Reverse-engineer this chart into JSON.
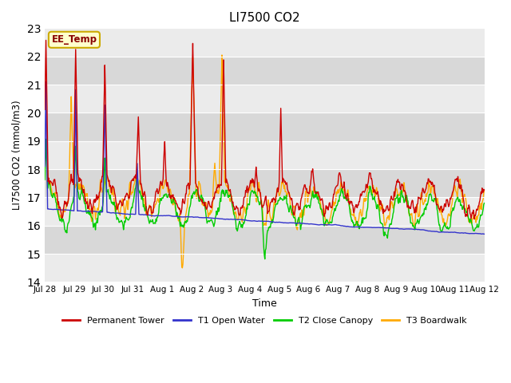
{
  "title": "LI7500 CO2",
  "ylabel": "LI7500 CO2 (mmol/m3)",
  "xlabel": "Time",
  "annotation": "EE_Temp",
  "ylim": [
    14.0,
    23.0
  ],
  "yticks": [
    14.0,
    15.0,
    16.0,
    17.0,
    18.0,
    19.0,
    20.0,
    21.0,
    22.0,
    23.0
  ],
  "xtick_labels": [
    "Jul 28",
    "Jul 29",
    "Jul 30",
    "Jul 31",
    "Aug 1",
    "Aug 2",
    "Aug 3",
    "Aug 4",
    "Aug 5",
    "Aug 6",
    "Aug 7",
    "Aug 8",
    "Aug 9",
    "Aug 10",
    "Aug 11",
    "Aug 12"
  ],
  "colors": {
    "permanent_tower": "#cc0000",
    "t1_open_water": "#3333cc",
    "t2_close_canopy": "#00cc00",
    "t3_boardwalk": "#ffaa00",
    "bg_light": "#ebebeb",
    "bg_dark": "#d8d8d8",
    "annotation_bg": "#ffffcc",
    "annotation_border": "#ccaa00",
    "annotation_text": "#880000"
  },
  "legend": [
    {
      "label": "Permanent Tower",
      "color": "#cc0000"
    },
    {
      "label": "T1 Open Water",
      "color": "#3333cc"
    },
    {
      "label": "T2 Close Canopy",
      "color": "#00cc00"
    },
    {
      "label": "T3 Boardwalk",
      "color": "#ffaa00"
    }
  ]
}
